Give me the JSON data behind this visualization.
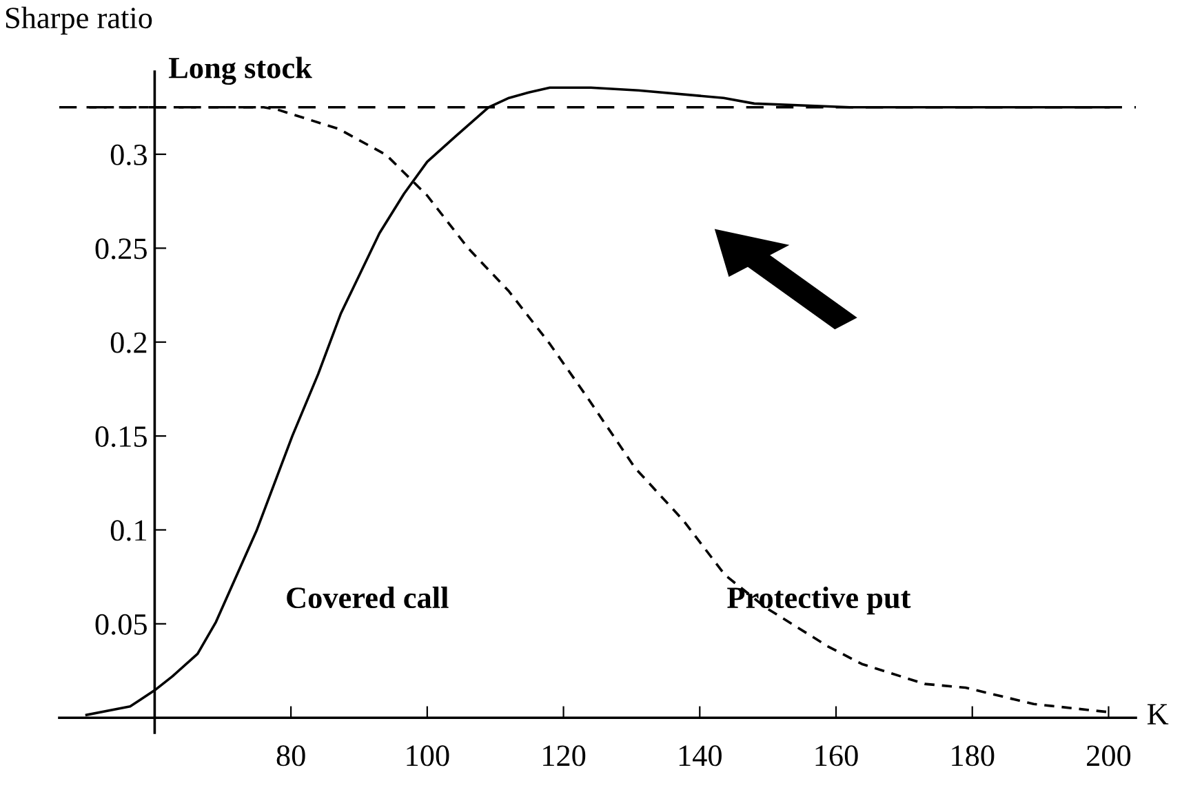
{
  "chart_data": {
    "type": "line",
    "xlabel": "K",
    "ylabel": "Sharpe ratio",
    "xlim": [
      46,
      204
    ],
    "ylim": [
      -0.008,
      0.344
    ],
    "xticks": [
      80,
      100,
      120,
      140,
      160,
      180,
      200
    ],
    "yticks": [
      0.05,
      0.1,
      0.15,
      0.2,
      0.25,
      0.3
    ],
    "grid": false,
    "legend": false,
    "marker": "none",
    "ref_lines": [
      {
        "axis": "y",
        "value": 0.325,
        "label": "Long stock",
        "line_style": "dashed",
        "color": "#000000"
      }
    ],
    "series": [
      {
        "name": "Covered call",
        "color": "#000000",
        "line_style": "solid",
        "x": [
          50,
          56.4,
          60,
          62.6,
          66.3,
          69,
          75,
          80.2,
          84,
          87.3,
          93,
          96.6,
          100,
          104,
          109,
          112,
          115,
          118,
          124,
          131,
          143.5,
          148,
          162,
          200
        ],
        "values": [
          0.0015,
          0.006,
          0.0146,
          0.022,
          0.034,
          0.051,
          0.1,
          0.15,
          0.183,
          0.215,
          0.258,
          0.279,
          0.296,
          0.309,
          0.325,
          0.33,
          0.333,
          0.3355,
          0.3355,
          0.334,
          0.33,
          0.327,
          0.325,
          0.325
        ]
      },
      {
        "name": "Protective put",
        "color": "#000000",
        "line_style": "dashed",
        "x": [
          50,
          76,
          78,
          87,
          94,
          100,
          106,
          112,
          118,
          123.6,
          130.5,
          137.6,
          143.7,
          149.7,
          158.8,
          163.8,
          173,
          179,
          189,
          200
        ],
        "values": [
          0.325,
          0.325,
          0.3238,
          0.3135,
          0.2996,
          0.278,
          0.25,
          0.227,
          0.199,
          0.17,
          0.133,
          0.105,
          0.076,
          0.0586,
          0.038,
          0.0286,
          0.018,
          0.016,
          0.0073,
          0.003
        ]
      }
    ]
  }
}
